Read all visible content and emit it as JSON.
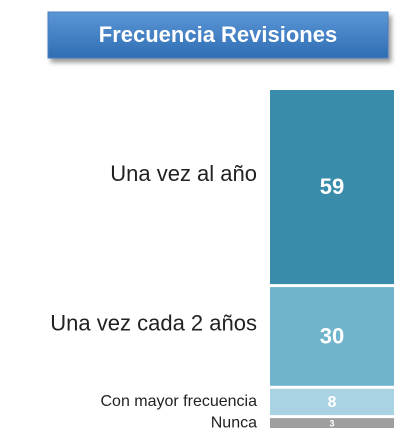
{
  "chart_data": {
    "type": "stacked-bar",
    "title": "Frecuencia Revisiones",
    "categories": [
      "Una vez al año",
      "Una vez cada 2 años",
      "Con mayor frecuencia",
      "Nunca"
    ],
    "values": [
      59,
      30,
      8,
      3
    ],
    "colors": [
      "#3a8cab",
      "#6fb3cc",
      "#a9d2e2",
      "#9e9e9e"
    ]
  }
}
